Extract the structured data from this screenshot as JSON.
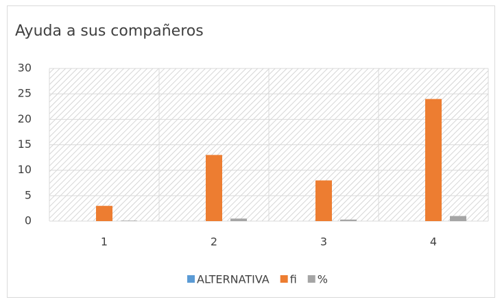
{
  "chart_data": {
    "type": "bar",
    "title": "Ayuda a sus compañeros",
    "categories": [
      "1",
      "2",
      "3",
      "4"
    ],
    "series": [
      {
        "name": "ALTERNATIVA",
        "color": "#5b9bd5",
        "values": [
          0,
          0,
          0,
          0
        ]
      },
      {
        "name": "fi",
        "color": "#ed7d31",
        "values": [
          3,
          13,
          8,
          24
        ]
      },
      {
        "name": "%",
        "color": "#a5a5a5",
        "values": [
          0.1,
          0.5,
          0.3,
          1
        ]
      }
    ],
    "ylim": [
      0,
      30
    ],
    "yticks": [
      0,
      5,
      10,
      15,
      20,
      25,
      30
    ],
    "grid": true,
    "legend": "bottom"
  }
}
